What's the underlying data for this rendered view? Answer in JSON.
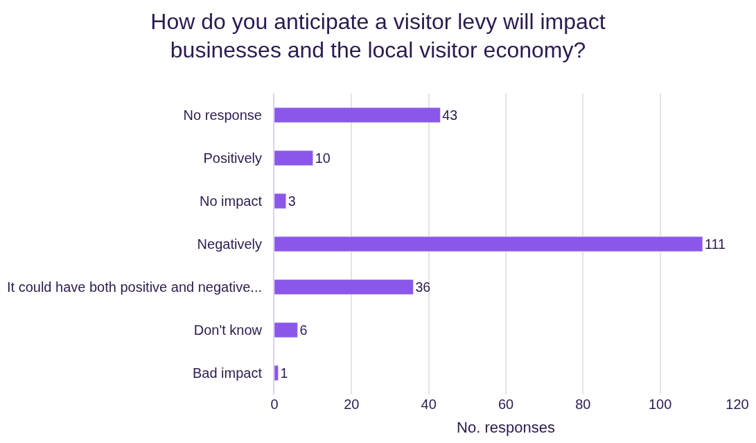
{
  "chart_data": {
    "type": "bar",
    "orientation": "horizontal",
    "title": "How do you anticipate a visitor levy will impact businesses and the local visitor economy?",
    "xlabel": "No. responses",
    "categories": [
      "No response",
      "Positively",
      "No impact",
      "Negatively",
      "It could have both positive and negative...",
      "Don't know",
      "Bad impact"
    ],
    "values": [
      43,
      10,
      3,
      111,
      36,
      6,
      1
    ],
    "color": "#8b57ea",
    "xlim": [
      0,
      120
    ],
    "xticks": [
      0,
      20,
      40,
      60,
      80,
      100,
      120
    ],
    "grid": "x",
    "data_labels": true,
    "legend": false
  }
}
